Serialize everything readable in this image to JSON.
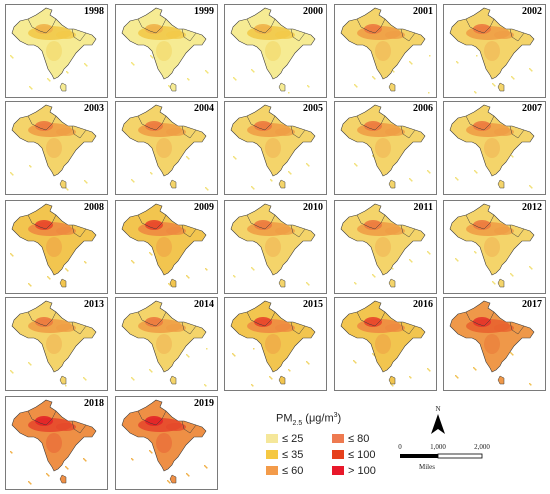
{
  "panels": [
    {
      "year": "1998",
      "level": 1
    },
    {
      "year": "1999",
      "level": 1
    },
    {
      "year": "2000",
      "level": 1
    },
    {
      "year": "2001",
      "level": 2
    },
    {
      "year": "2002",
      "level": 2
    },
    {
      "year": "2003",
      "level": 2
    },
    {
      "year": "2004",
      "level": 2
    },
    {
      "year": "2005",
      "level": 2
    },
    {
      "year": "2006",
      "level": 2
    },
    {
      "year": "2007",
      "level": 2
    },
    {
      "year": "2008",
      "level": 3
    },
    {
      "year": "2009",
      "level": 3
    },
    {
      "year": "2010",
      "level": 2
    },
    {
      "year": "2011",
      "level": 2
    },
    {
      "year": "2012",
      "level": 2
    },
    {
      "year": "2013",
      "level": 2
    },
    {
      "year": "2014",
      "level": 2
    },
    {
      "year": "2015",
      "level": 3
    },
    {
      "year": "2016",
      "level": 3
    },
    {
      "year": "2017",
      "level": 4
    },
    {
      "year": "2018",
      "level": 5
    },
    {
      "year": "2019",
      "level": 5
    }
  ],
  "legend": {
    "title_main": "PM",
    "title_sub": "2.5",
    "title_unit_open": " (μg/m",
    "title_unit_sup": "3",
    "title_unit_close": ")",
    "items": [
      {
        "label": "≤ 25",
        "color": "#f5e79a"
      },
      {
        "label": "≤ 35",
        "color": "#f5c842"
      },
      {
        "label": "≤ 60",
        "color": "#f39b4a"
      },
      {
        "label": "≤ 80",
        "color": "#ee7a50"
      },
      {
        "label": "≤ 100",
        "color": "#e6401c"
      },
      {
        "label": "> 100",
        "color": "#e8182a"
      }
    ]
  },
  "north_arrow": {
    "label": "N"
  },
  "scale_bar": {
    "ticks": [
      "0",
      "1,000",
      "2,000"
    ],
    "units": "Miles"
  }
}
